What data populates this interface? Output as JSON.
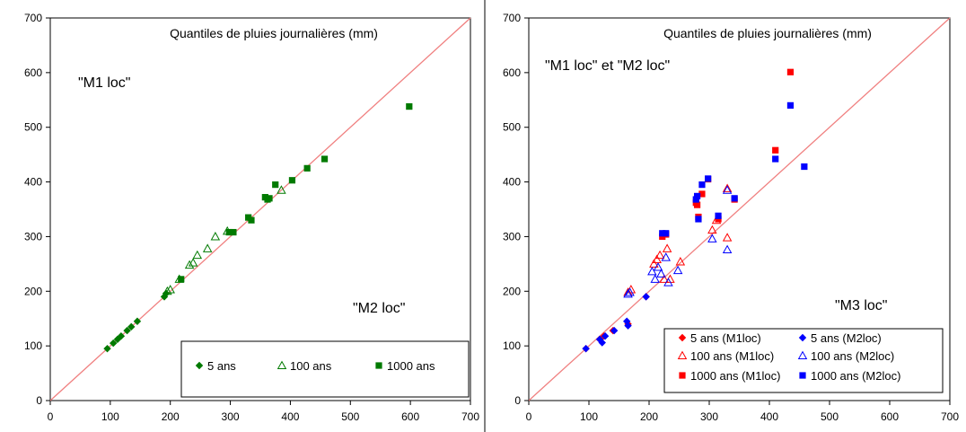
{
  "chart_data": [
    {
      "type": "scatter",
      "title": "Quantiles de pluies journalières (mm)",
      "xlabel": "",
      "ylabel": "",
      "xlim": [
        0,
        700
      ],
      "ylim": [
        0,
        700
      ],
      "x_ticks": [
        "0",
        "100",
        "200",
        "300",
        "400",
        "500",
        "600",
        "700"
      ],
      "y_ticks": [
        "0",
        "100",
        "200",
        "300",
        "400",
        "500",
        "600",
        "700"
      ],
      "grid": false,
      "diagonal_color": "#f08080",
      "annotations": [
        "\"M1 loc\"",
        "\"M2 loc\""
      ],
      "legend_position": "bottom-right",
      "series": [
        {
          "name": "5 ans",
          "marker": "diamond",
          "color": "#007a00",
          "points": [
            [
              95,
              95
            ],
            [
              105,
              105
            ],
            [
              112,
              112
            ],
            [
              118,
              118
            ],
            [
              128,
              128
            ],
            [
              135,
              135
            ],
            [
              145,
              145
            ],
            [
              190,
              190
            ],
            [
              193,
              196
            ]
          ]
        },
        {
          "name": "100 ans",
          "marker": "triangle-open",
          "color": "#007a00",
          "points": [
            [
              195,
              200
            ],
            [
              200,
              203
            ],
            [
              215,
              222
            ],
            [
              232,
              248
            ],
            [
              238,
              252
            ],
            [
              245,
              266
            ],
            [
              262,
              278
            ],
            [
              275,
              300
            ],
            [
              295,
              310
            ],
            [
              385,
              385
            ]
          ]
        },
        {
          "name": "1000 ans",
          "marker": "square",
          "color": "#007a00",
          "points": [
            [
              218,
              222
            ],
            [
              298,
              308
            ],
            [
              305,
              308
            ],
            [
              330,
              335
            ],
            [
              335,
              330
            ],
            [
              358,
              372
            ],
            [
              362,
              368
            ],
            [
              365,
              370
            ],
            [
              375,
              395
            ],
            [
              403,
              403
            ],
            [
              428,
              425
            ],
            [
              457,
              442
            ],
            [
              598,
              538
            ]
          ]
        }
      ]
    },
    {
      "type": "scatter",
      "title": "Quantiles de pluies journalières (mm)",
      "xlabel": "",
      "ylabel": "",
      "xlim": [
        0,
        700
      ],
      "ylim": [
        0,
        700
      ],
      "x_ticks": [
        "0",
        "100",
        "200",
        "300",
        "400",
        "500",
        "600",
        "700"
      ],
      "y_ticks": [
        "0",
        "100",
        "200",
        "300",
        "400",
        "500",
        "600",
        "700"
      ],
      "grid": false,
      "diagonal_color": "#f08080",
      "annotations": [
        "\"M1 loc\" et \"M2 loc\"",
        "\"M3 loc\""
      ],
      "legend_position": "bottom-right",
      "series": [
        {
          "name": "5 ans (M1loc)",
          "marker": "diamond",
          "color": "#ff0000",
          "points": [
            [
              95,
              95
            ],
            [
              118,
              112
            ],
            [
              125,
              118
            ],
            [
              140,
              128
            ],
            [
              165,
              140
            ],
            [
              195,
              190
            ]
          ]
        },
        {
          "name": "5 ans (M2loc)",
          "marker": "diamond",
          "color": "#0000ff",
          "points": [
            [
              95,
              95
            ],
            [
              118,
              112
            ],
            [
              122,
              106
            ],
            [
              127,
              118
            ],
            [
              142,
              128
            ],
            [
              163,
              145
            ],
            [
              165,
              137
            ],
            [
              195,
              190
            ]
          ]
        },
        {
          "name": "100 ans (M1loc)",
          "marker": "triangle-open",
          "color": "#ff0000",
          "points": [
            [
              165,
              198
            ],
            [
              170,
              203
            ],
            [
              208,
              250
            ],
            [
              213,
              258
            ],
            [
              218,
              266
            ],
            [
              225,
              222
            ],
            [
              230,
              278
            ],
            [
              235,
              222
            ],
            [
              252,
              254
            ],
            [
              305,
              312
            ],
            [
              312,
              330
            ],
            [
              330,
              298
            ],
            [
              330,
              388
            ]
          ]
        },
        {
          "name": "100 ans (M2loc)",
          "marker": "triangle-open",
          "color": "#0000ff",
          "points": [
            [
              165,
              195
            ],
            [
              168,
              198
            ],
            [
              205,
              236
            ],
            [
              210,
              222
            ],
            [
              215,
              244
            ],
            [
              220,
              232
            ],
            [
              228,
              262
            ],
            [
              232,
              216
            ],
            [
              248,
              238
            ],
            [
              305,
              296
            ],
            [
              330,
              276
            ],
            [
              330,
              385
            ]
          ]
        },
        {
          "name": "1000 ans (M1loc)",
          "marker": "square",
          "color": "#ff0000",
          "points": [
            [
              222,
              300
            ],
            [
              228,
              304
            ],
            [
              278,
              362
            ],
            [
              280,
              358
            ],
            [
              282,
              336
            ],
            [
              288,
              378
            ],
            [
              298,
              405
            ],
            [
              315,
              332
            ],
            [
              342,
              368
            ],
            [
              410,
              458
            ],
            [
              435,
              601
            ]
          ]
        },
        {
          "name": "1000 ans (M2loc)",
          "marker": "square",
          "color": "#0000ff",
          "points": [
            [
              222,
              306
            ],
            [
              228,
              306
            ],
            [
              278,
              368
            ],
            [
              280,
              374
            ],
            [
              282,
              332
            ],
            [
              288,
              395
            ],
            [
              298,
              406
            ],
            [
              315,
              338
            ],
            [
              342,
              370
            ],
            [
              410,
              442
            ],
            [
              435,
              540
            ],
            [
              458,
              428
            ]
          ]
        }
      ]
    }
  ]
}
